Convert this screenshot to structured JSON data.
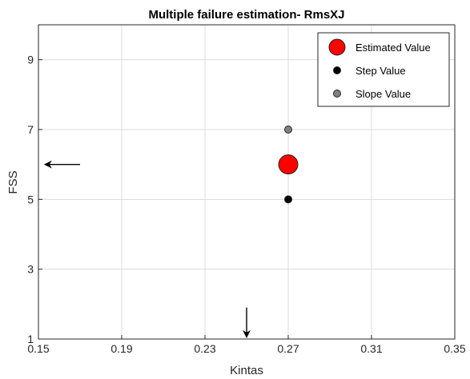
{
  "chart_data": {
    "type": "scatter",
    "title": "Multiple failure estimation- RmsXJ",
    "xlabel": "Kintas",
    "ylabel": "FSS",
    "xlim": [
      0.15,
      0.35
    ],
    "ylim": [
      1,
      10
    ],
    "xticks": [
      "0.15",
      "0.19",
      "0.23",
      "0.27",
      "0.31",
      "0.35"
    ],
    "yticks": [
      "1",
      "3",
      "5",
      "7",
      "9"
    ],
    "grid": true,
    "legend_position": "top-right",
    "series": [
      {
        "name": "Estimated Value",
        "color": "#ff0000",
        "marker": "large-circle",
        "x": [
          0.27
        ],
        "y": [
          6
        ]
      },
      {
        "name": "Step Value",
        "color": "#000000",
        "marker": "small-circle",
        "x": [
          0.27
        ],
        "y": [
          5
        ]
      },
      {
        "name": "Slope Value",
        "color": "#808080",
        "marker": "small-circle",
        "x": [
          0.27
        ],
        "y": [
          7
        ]
      }
    ],
    "annotations": [
      {
        "type": "arrow",
        "direction": "left",
        "x_from": 0.17,
        "x_to": 0.153,
        "y": 6
      },
      {
        "type": "arrow",
        "direction": "down",
        "x": 0.25,
        "y_from": 1.9,
        "y_to": 1.05
      }
    ]
  }
}
